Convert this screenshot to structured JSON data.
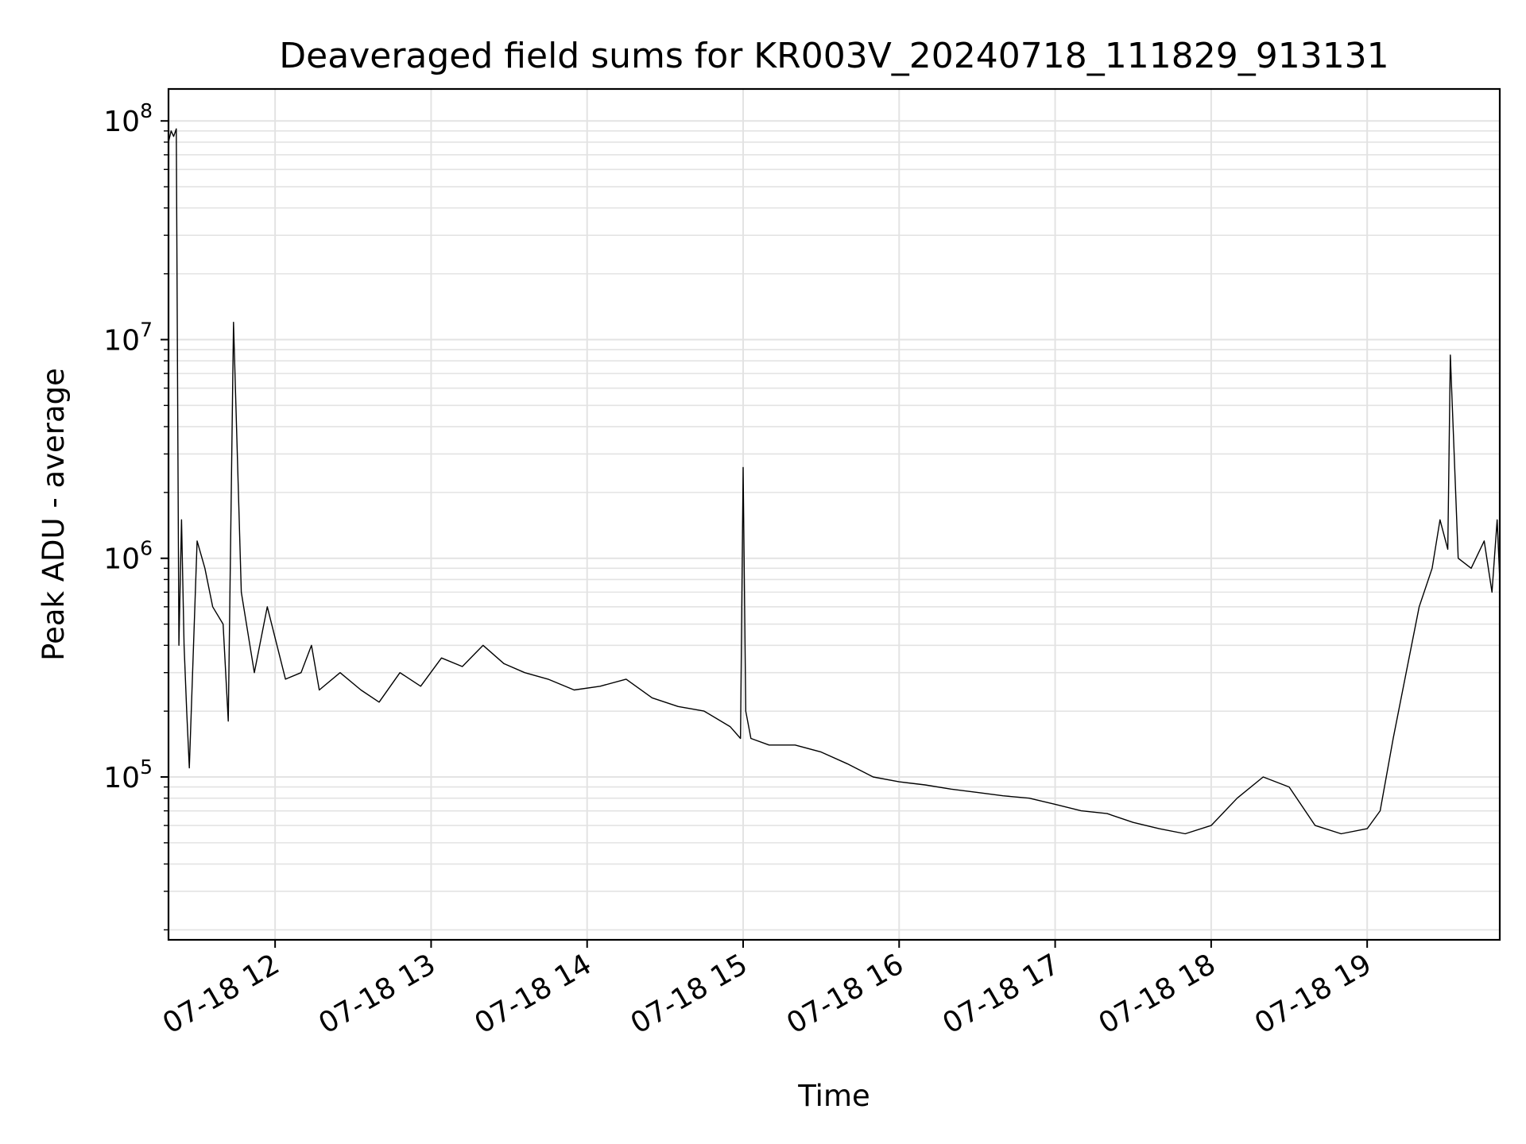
{
  "chart_data": {
    "type": "line",
    "title": "Deaveraged field sums for KR003V_20240718_111829_913131",
    "xlabel": "Time",
    "ylabel": "Peak ADU - average",
    "yscale": "log",
    "ylim": [
      18000,
      140000000
    ],
    "xlim": [
      "07-18 11:19",
      "07-18 19:51"
    ],
    "grid": true,
    "line_color": "#000000",
    "x_ticks": [
      "07-18 12",
      "07-18 13",
      "07-18 14",
      "07-18 15",
      "07-18 16",
      "07-18 17",
      "07-18 18",
      "07-18 19"
    ],
    "y_ticks": [
      {
        "base": "10",
        "exp": "5"
      },
      {
        "base": "10",
        "exp": "6"
      },
      {
        "base": "10",
        "exp": "7"
      },
      {
        "base": "10",
        "exp": "8"
      }
    ],
    "series": [
      {
        "x": [
          "07-18 11:19",
          "07-18 11:20",
          "07-18 11:21",
          "07-18 11:22",
          "07-18 11:23",
          "07-18 11:24",
          "07-18 11:25",
          "07-18 11:26",
          "07-18 11:27",
          "07-18 11:30",
          "07-18 11:33",
          "07-18 11:36",
          "07-18 11:40",
          "07-18 11:42",
          "07-18 11:44",
          "07-18 11:47",
          "07-18 11:52",
          "07-18 11:57",
          "07-18 12:04",
          "07-18 12:10",
          "07-18 12:14",
          "07-18 12:17",
          "07-18 12:25",
          "07-18 12:33",
          "07-18 12:40",
          "07-18 12:48",
          "07-18 12:56",
          "07-18 13:04",
          "07-18 13:12",
          "07-18 13:20",
          "07-18 13:28",
          "07-18 13:36",
          "07-18 13:45",
          "07-18 13:55",
          "07-18 14:05",
          "07-18 14:15",
          "07-18 14:25",
          "07-18 14:35",
          "07-18 14:45",
          "07-18 14:55",
          "07-18 14:59",
          "07-18 15:00",
          "07-18 15:01",
          "07-18 15:03",
          "07-18 15:10",
          "07-18 15:20",
          "07-18 15:30",
          "07-18 15:40",
          "07-18 15:50",
          "07-18 16:00",
          "07-18 16:10",
          "07-18 16:20",
          "07-18 16:30",
          "07-18 16:40",
          "07-18 16:50",
          "07-18 17:00",
          "07-18 17:10",
          "07-18 17:20",
          "07-18 17:30",
          "07-18 17:40",
          "07-18 17:50",
          "07-18 18:00",
          "07-18 18:10",
          "07-18 18:20",
          "07-18 18:30",
          "07-18 18:40",
          "07-18 18:50",
          "07-18 19:00",
          "07-18 19:05",
          "07-18 19:10",
          "07-18 19:15",
          "07-18 19:20",
          "07-18 19:25",
          "07-18 19:28",
          "07-18 19:31",
          "07-18 19:32",
          "07-18 19:35",
          "07-18 19:40",
          "07-18 19:45",
          "07-18 19:48",
          "07-18 19:50",
          "07-18 19:51"
        ],
        "y": [
          80000000,
          90000000,
          85000000,
          92000000,
          400000,
          1500000,
          400000,
          200000,
          110000,
          1200000,
          900000,
          600000,
          500000,
          180000,
          12000000,
          700000,
          300000,
          600000,
          280000,
          300000,
          400000,
          250000,
          300000,
          250000,
          220000,
          300000,
          260000,
          350000,
          320000,
          400000,
          330000,
          300000,
          280000,
          250000,
          260000,
          280000,
          230000,
          210000,
          200000,
          170000,
          150000,
          2600000,
          200000,
          150000,
          140000,
          140000,
          130000,
          115000,
          100000,
          95000,
          92000,
          88000,
          85000,
          82000,
          80000,
          75000,
          70000,
          68000,
          62000,
          58000,
          55000,
          60000,
          80000,
          100000,
          90000,
          60000,
          55000,
          58000,
          70000,
          150000,
          300000,
          600000,
          900000,
          1500000,
          1100000,
          8500000,
          1000000,
          900000,
          1200000,
          700000,
          1500000,
          800000
        ]
      }
    ]
  }
}
